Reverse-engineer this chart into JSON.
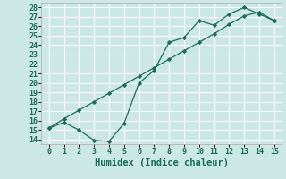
{
  "xlabel": "Humidex (Indice chaleur)",
  "bg_color": "#cce8e4",
  "line_color": "#1a6b5a",
  "grid_color": "#ffffff",
  "xlim": [
    -0.5,
    15.5
  ],
  "ylim": [
    13.5,
    28.5
  ],
  "xticks": [
    0,
    1,
    2,
    3,
    4,
    5,
    6,
    7,
    8,
    9,
    10,
    11,
    12,
    13,
    14,
    15
  ],
  "yticks": [
    14,
    15,
    16,
    17,
    18,
    19,
    20,
    21,
    22,
    23,
    24,
    25,
    26,
    27,
    28
  ],
  "series1_x": [
    0,
    1,
    2,
    3,
    4,
    5,
    6,
    7,
    8,
    9,
    10,
    11,
    12,
    13,
    14,
    15
  ],
  "series1_y": [
    15.2,
    15.8,
    15.0,
    13.9,
    13.8,
    15.7,
    20.0,
    21.3,
    24.3,
    24.8,
    26.6,
    26.1,
    27.3,
    28.0,
    27.3,
    26.6
  ],
  "series2_x": [
    0,
    1,
    2,
    3,
    4,
    5,
    6,
    7,
    8,
    9,
    10,
    11,
    12,
    13,
    14,
    15
  ],
  "series2_y": [
    15.2,
    16.2,
    17.1,
    18.0,
    18.9,
    19.8,
    20.7,
    21.6,
    22.5,
    23.4,
    24.3,
    25.2,
    26.2,
    27.1,
    27.5,
    26.6
  ],
  "font_family": "monospace",
  "tick_fontsize": 6,
  "xlabel_fontsize": 7.5
}
